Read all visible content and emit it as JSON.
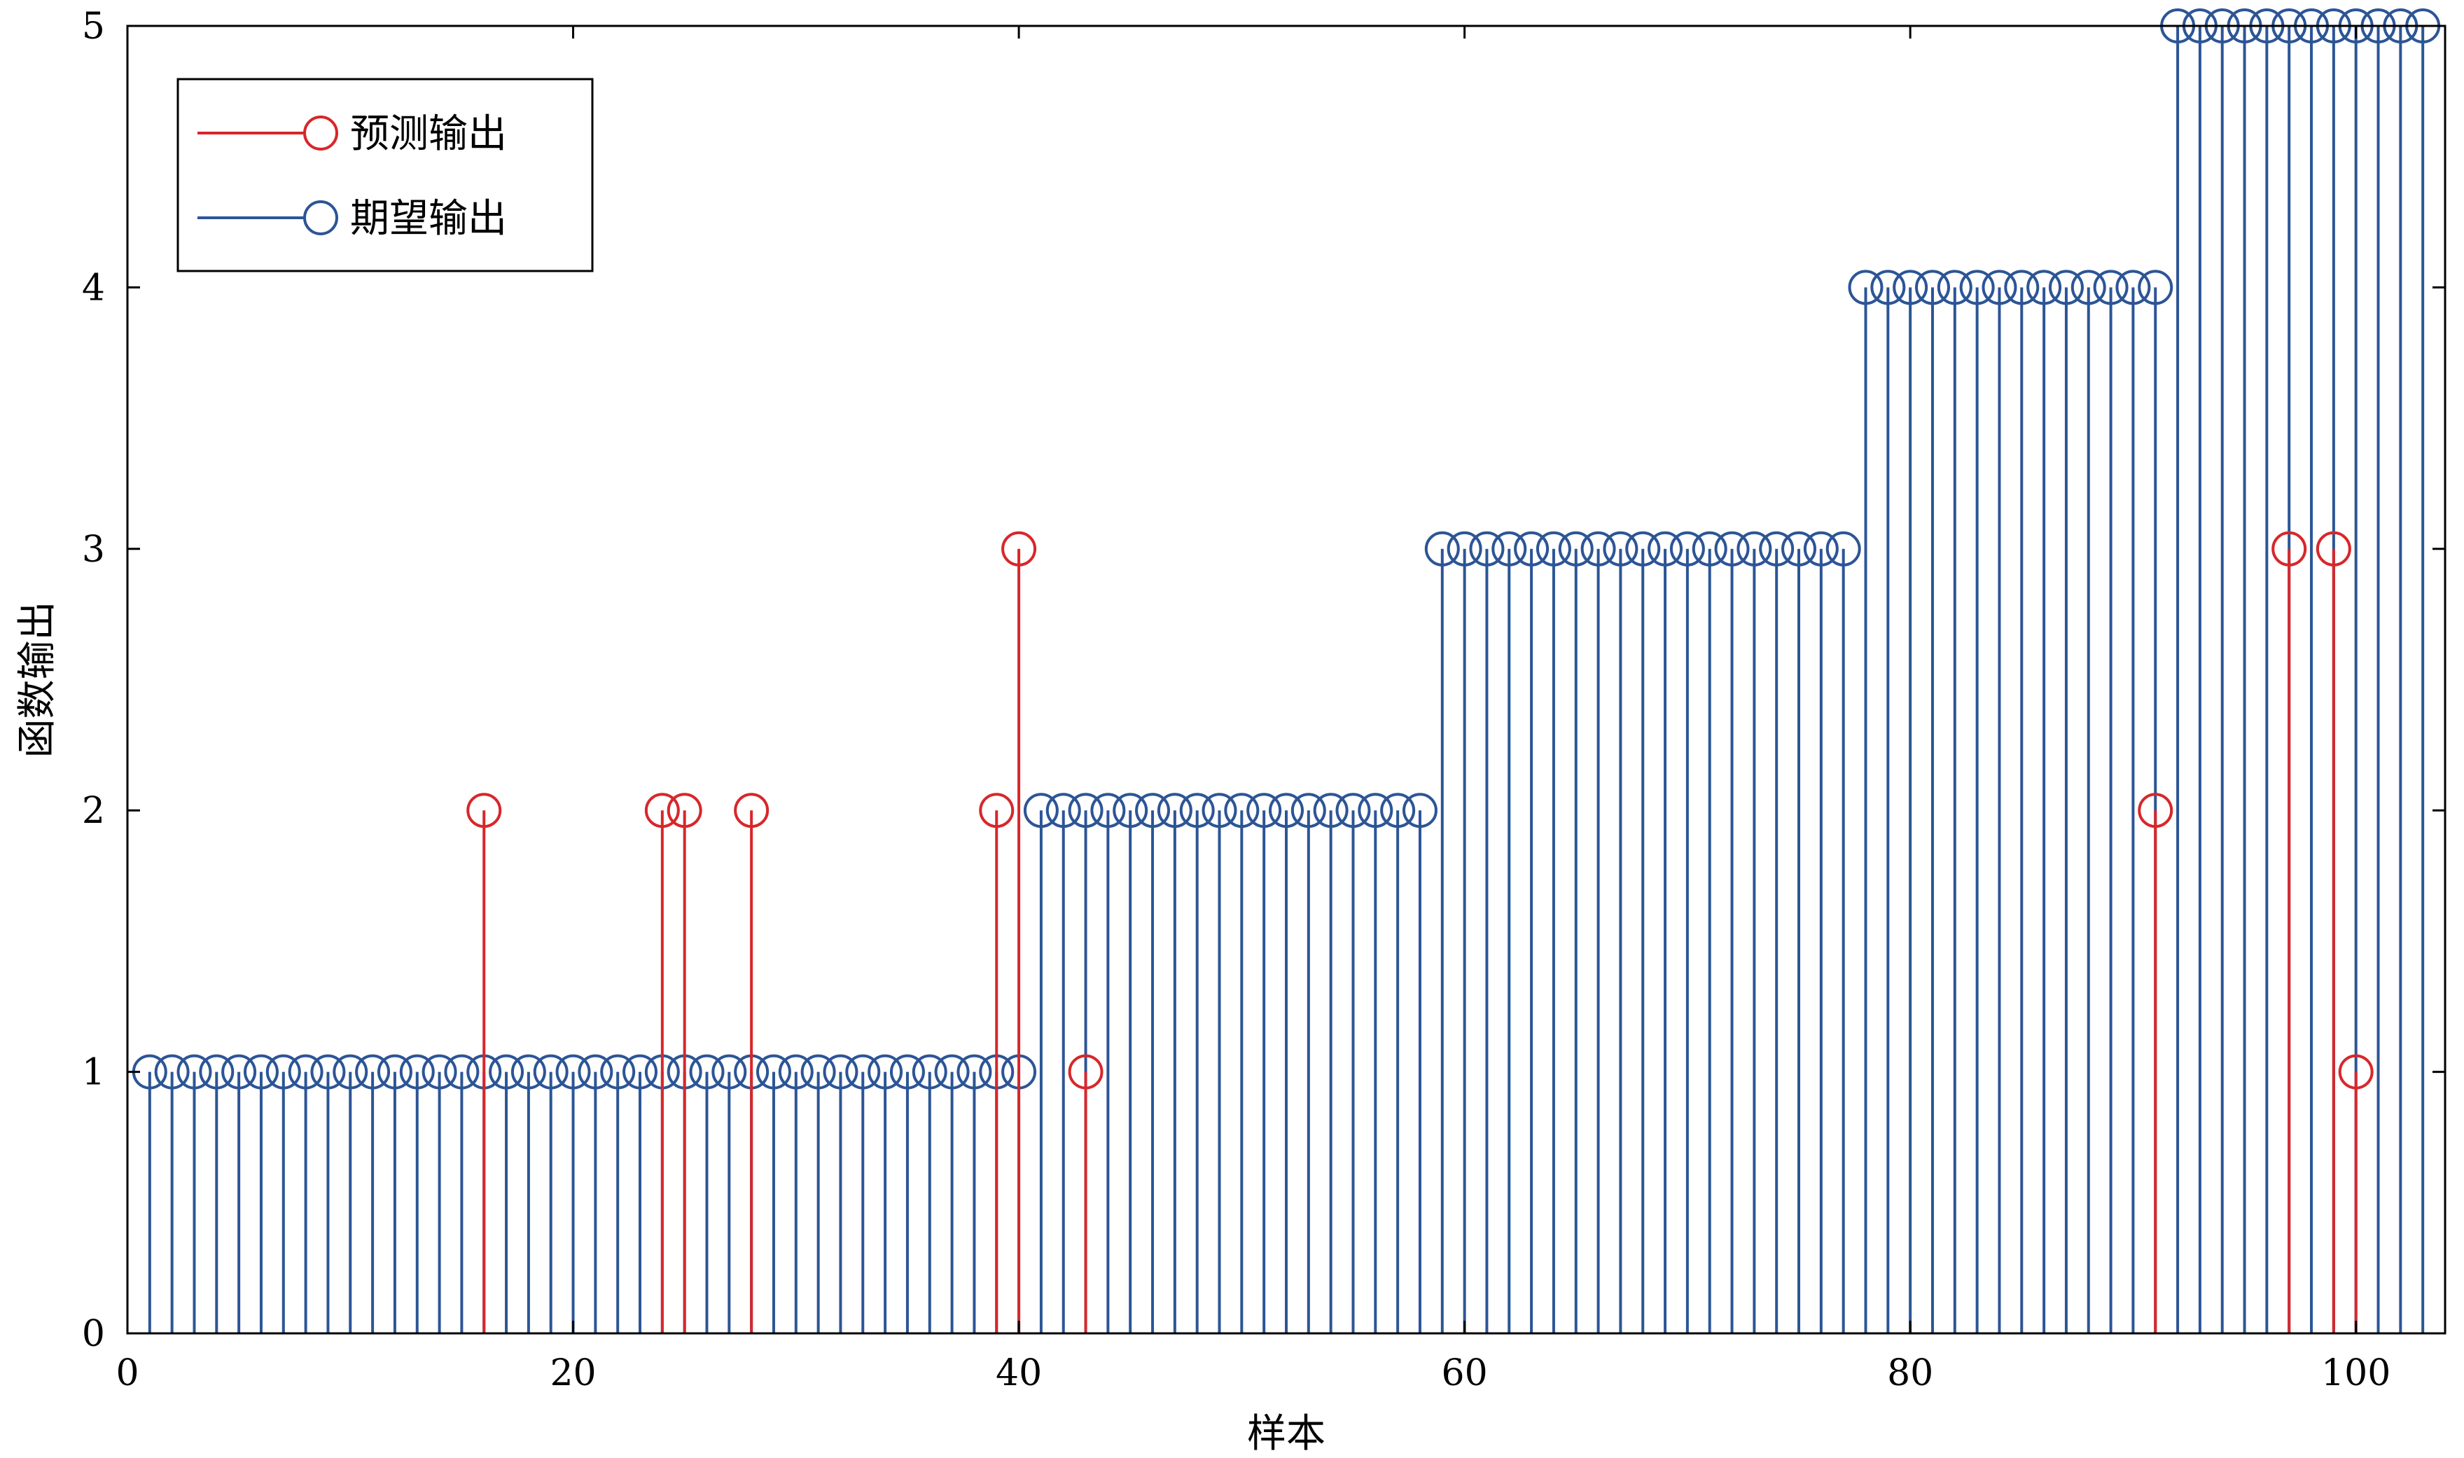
{
  "chart_data": {
    "type": "stem",
    "xlabel": "样本",
    "ylabel": "函数输出",
    "xlim": [
      0,
      104
    ],
    "ylim": [
      0,
      5
    ],
    "xticks": [
      0,
      20,
      40,
      60,
      80,
      100
    ],
    "yticks": [
      0,
      1,
      2,
      3,
      4,
      5
    ],
    "legend_position": "top-left",
    "series": [
      {
        "name": "期望输出",
        "color": "#2c5596",
        "marker": "circle",
        "points": [
          [
            1,
            1
          ],
          [
            2,
            1
          ],
          [
            3,
            1
          ],
          [
            4,
            1
          ],
          [
            5,
            1
          ],
          [
            6,
            1
          ],
          [
            7,
            1
          ],
          [
            8,
            1
          ],
          [
            9,
            1
          ],
          [
            10,
            1
          ],
          [
            11,
            1
          ],
          [
            12,
            1
          ],
          [
            13,
            1
          ],
          [
            14,
            1
          ],
          [
            15,
            1
          ],
          [
            16,
            1
          ],
          [
            17,
            1
          ],
          [
            18,
            1
          ],
          [
            19,
            1
          ],
          [
            20,
            1
          ],
          [
            21,
            1
          ],
          [
            22,
            1
          ],
          [
            23,
            1
          ],
          [
            24,
            1
          ],
          [
            25,
            1
          ],
          [
            26,
            1
          ],
          [
            27,
            1
          ],
          [
            28,
            1
          ],
          [
            29,
            1
          ],
          [
            30,
            1
          ],
          [
            31,
            1
          ],
          [
            32,
            1
          ],
          [
            33,
            1
          ],
          [
            34,
            1
          ],
          [
            35,
            1
          ],
          [
            36,
            1
          ],
          [
            37,
            1
          ],
          [
            38,
            1
          ],
          [
            39,
            1
          ],
          [
            40,
            1
          ],
          [
            41,
            2
          ],
          [
            42,
            2
          ],
          [
            43,
            2
          ],
          [
            44,
            2
          ],
          [
            45,
            2
          ],
          [
            46,
            2
          ],
          [
            47,
            2
          ],
          [
            48,
            2
          ],
          [
            49,
            2
          ],
          [
            50,
            2
          ],
          [
            51,
            2
          ],
          [
            52,
            2
          ],
          [
            53,
            2
          ],
          [
            54,
            2
          ],
          [
            55,
            2
          ],
          [
            56,
            2
          ],
          [
            57,
            2
          ],
          [
            58,
            2
          ],
          [
            59,
            3
          ],
          [
            60,
            3
          ],
          [
            61,
            3
          ],
          [
            62,
            3
          ],
          [
            63,
            3
          ],
          [
            64,
            3
          ],
          [
            65,
            3
          ],
          [
            66,
            3
          ],
          [
            67,
            3
          ],
          [
            68,
            3
          ],
          [
            69,
            3
          ],
          [
            70,
            3
          ],
          [
            71,
            3
          ],
          [
            72,
            3
          ],
          [
            73,
            3
          ],
          [
            74,
            3
          ],
          [
            75,
            3
          ],
          [
            76,
            3
          ],
          [
            77,
            3
          ],
          [
            78,
            4
          ],
          [
            79,
            4
          ],
          [
            80,
            4
          ],
          [
            81,
            4
          ],
          [
            82,
            4
          ],
          [
            83,
            4
          ],
          [
            84,
            4
          ],
          [
            85,
            4
          ],
          [
            86,
            4
          ],
          [
            87,
            4
          ],
          [
            88,
            4
          ],
          [
            89,
            4
          ],
          [
            90,
            4
          ],
          [
            91,
            4
          ],
          [
            92,
            5
          ],
          [
            93,
            5
          ],
          [
            94,
            5
          ],
          [
            95,
            5
          ],
          [
            96,
            5
          ],
          [
            97,
            5
          ],
          [
            98,
            5
          ],
          [
            99,
            5
          ],
          [
            100,
            5
          ],
          [
            101,
            5
          ],
          [
            102,
            5
          ],
          [
            103,
            5
          ]
        ]
      },
      {
        "name": "预测输出",
        "color": "#d7272b",
        "marker": "circle",
        "points": [
          [
            16,
            2
          ],
          [
            24,
            2
          ],
          [
            25,
            2
          ],
          [
            28,
            2
          ],
          [
            39,
            2
          ],
          [
            40,
            3
          ],
          [
            43,
            1
          ],
          [
            91,
            2
          ],
          [
            97,
            3
          ],
          [
            99,
            3
          ],
          [
            100,
            1
          ]
        ]
      }
    ]
  }
}
